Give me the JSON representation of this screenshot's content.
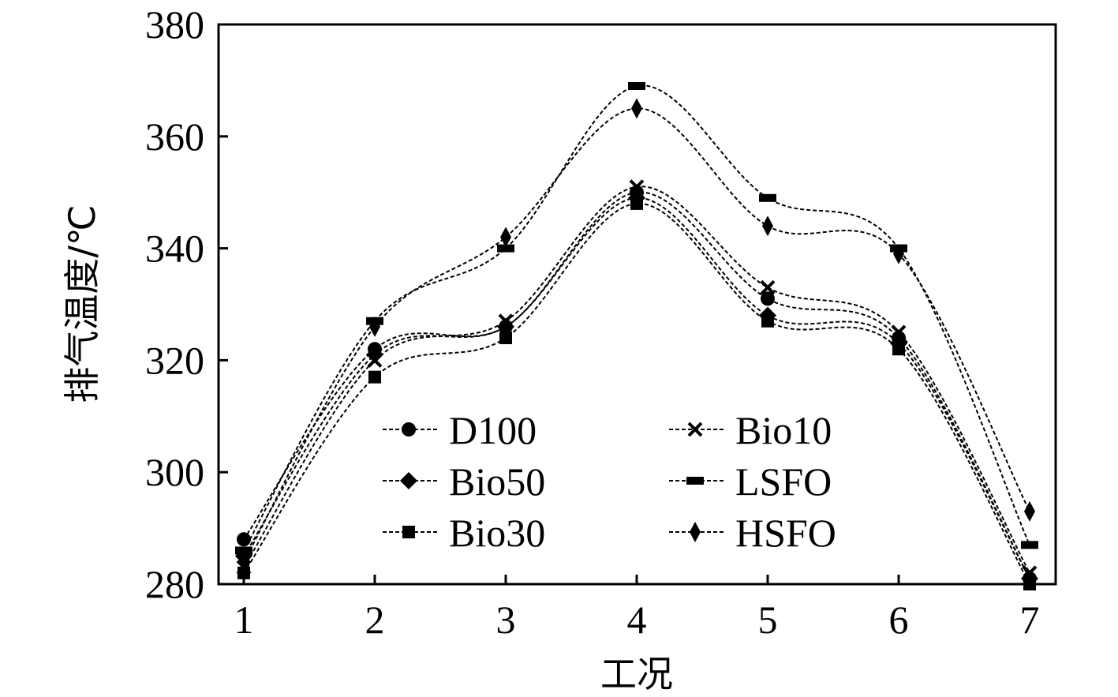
{
  "chart_data": {
    "type": "line",
    "title": "",
    "xlabel": "工况",
    "ylabel": "排气温度/℃",
    "x": [
      1,
      2,
      3,
      4,
      5,
      6,
      7
    ],
    "ylim": [
      280,
      380
    ],
    "yticks": [
      280,
      300,
      320,
      340,
      360,
      380
    ],
    "grid": false,
    "legend_position": "lower-center",
    "series": [
      {
        "name": "D100",
        "marker": "circle",
        "values": [
          288,
          322,
          326,
          350,
          331,
          324,
          281
        ]
      },
      {
        "name": "Bio10",
        "marker": "x",
        "values": [
          283,
          320,
          327,
          351,
          333,
          325,
          282
        ]
      },
      {
        "name": "Bio50",
        "marker": "diamond",
        "values": [
          285,
          321,
          326,
          349,
          328,
          323,
          281
        ]
      },
      {
        "name": "LSFO",
        "marker": "dash",
        "values": [
          286,
          327,
          340,
          369,
          349,
          340,
          287
        ]
      },
      {
        "name": "Bio30",
        "marker": "square",
        "values": [
          282,
          317,
          324,
          348,
          327,
          322,
          280
        ]
      },
      {
        "name": "HSFO",
        "marker": "thin-diamond",
        "values": [
          284,
          326,
          342,
          365,
          344,
          339,
          293
        ]
      }
    ]
  }
}
